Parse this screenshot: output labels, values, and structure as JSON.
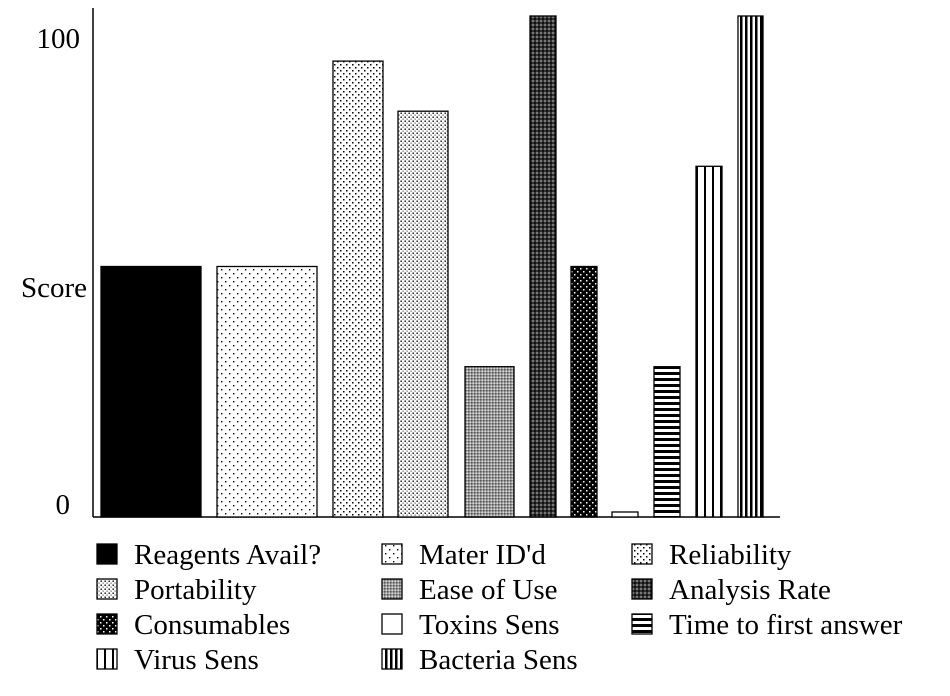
{
  "chart_data": {
    "type": "bar",
    "title": "",
    "xlabel": "",
    "ylabel": "Score",
    "ylim": [
      0,
      100
    ],
    "y_ticks": [
      "0",
      "Score",
      "100"
    ],
    "grid": false,
    "legend_position": "bottom",
    "bars": [
      {
        "name": "Reagents Avail?",
        "value": 50,
        "pattern": "solid"
      },
      {
        "name": "Mater ID'd",
        "value": 50,
        "pattern": "dots-sparse"
      },
      {
        "name": "Reliability",
        "value": 91,
        "pattern": "dots-medium"
      },
      {
        "name": "Portability",
        "value": 81,
        "pattern": "dots-dense"
      },
      {
        "name": "Ease of Use",
        "value": 30,
        "pattern": "gray-checker"
      },
      {
        "name": "Analysis Rate",
        "value": 100,
        "pattern": "dark-checker"
      },
      {
        "name": "Consumables",
        "value": 50,
        "pattern": "black-dots"
      },
      {
        "name": "Toxins Sens",
        "value": 1,
        "pattern": "outline"
      },
      {
        "name": "Time to first answer",
        "value": 30,
        "pattern": "horizontal-stripes"
      },
      {
        "name": "Virus Sens",
        "value": 70,
        "pattern": "vertical-stripes-wide"
      },
      {
        "name": "Bacteria Sens",
        "value": 100,
        "pattern": "vertical-stripes-fine"
      }
    ]
  }
}
